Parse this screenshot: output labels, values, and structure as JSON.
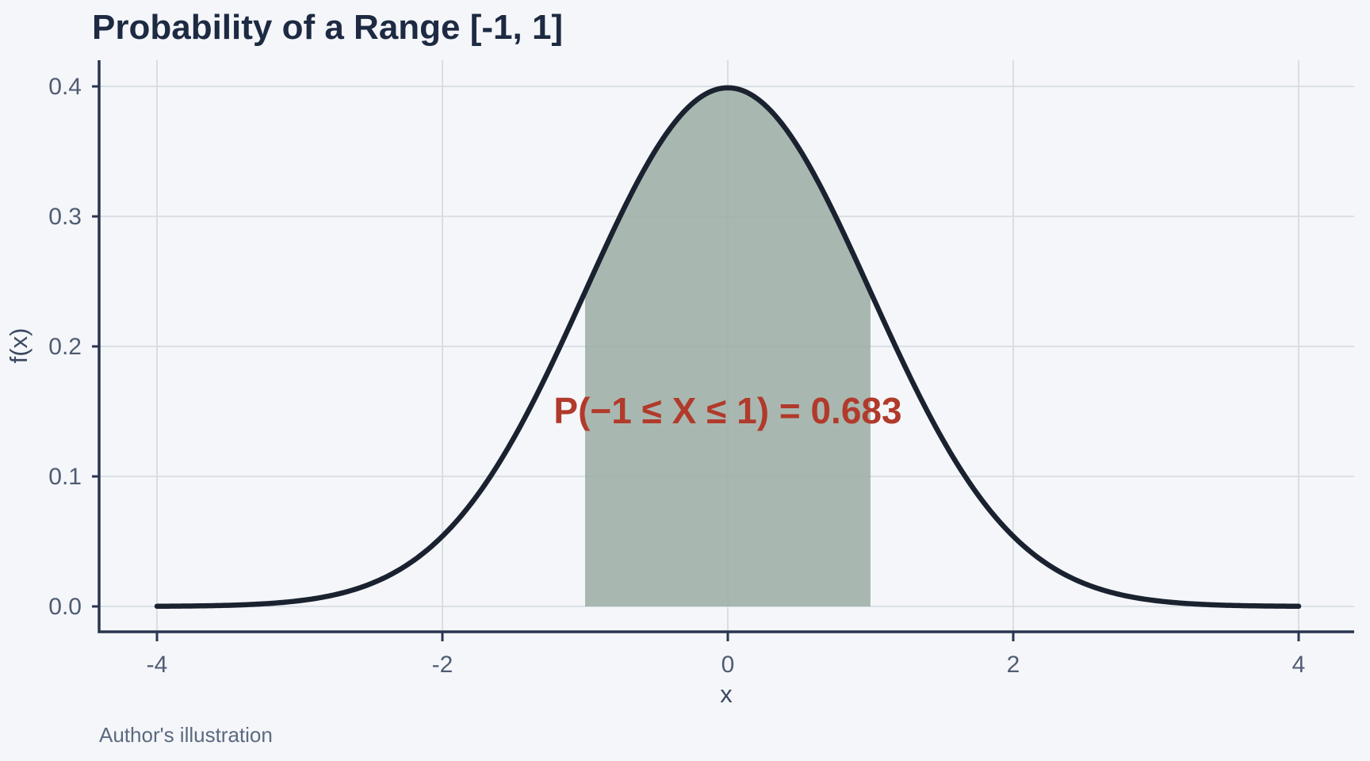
{
  "page": {
    "background": "#f4f6f9"
  },
  "header": {
    "title": "Probability of a Range [-1, 1]"
  },
  "caption": {
    "text": "Author's illustration"
  },
  "colors": {
    "background": "#f4f6f9",
    "gridline": "#d7dce2",
    "axis_line": "#2a3550",
    "curve_line": "#1a2230",
    "area_fill": "#9aada3",
    "tick_label": "#505c73",
    "axis_title": "#3c4860",
    "chart_title": "#1d2a42",
    "annotation_text": "#b13a2b",
    "caption_text": "#5c6980"
  },
  "chart_data": {
    "type": "area",
    "title": "Probability of a Range [-1, 1]",
    "xlabel": "x",
    "ylabel": "f(x)",
    "distribution": "normal",
    "mean": 0,
    "sd": 1,
    "curve_x_range": [
      -4,
      4
    ],
    "shaded_interval": [
      -1,
      1
    ],
    "shaded_probability": 0.683,
    "annotation": "P(−1 ≤ X ≤ 1) = 0.683",
    "peak_density": 0.3989,
    "x_ticks": [
      {
        "value": -4,
        "label": "-4"
      },
      {
        "value": -2,
        "label": "-2"
      },
      {
        "value": 0,
        "label": "0"
      },
      {
        "value": 2,
        "label": "2"
      },
      {
        "value": 4,
        "label": "4"
      }
    ],
    "y_ticks": [
      {
        "value": 0.0,
        "label": "0.0"
      },
      {
        "value": 0.1,
        "label": "0.1"
      },
      {
        "value": 0.2,
        "label": "0.2"
      },
      {
        "value": 0.3,
        "label": "0.3"
      },
      {
        "value": 0.4,
        "label": "0.4"
      }
    ],
    "xlim": [
      -4.4,
      4.4
    ],
    "ylim": [
      0,
      0.42
    ],
    "grid": true,
    "legend": "none",
    "sample_points": {
      "x": [
        -4,
        -3.5,
        -3,
        -2.5,
        -2,
        -1.5,
        -1,
        -0.5,
        0,
        0.5,
        1,
        1.5,
        2,
        2.5,
        3,
        3.5,
        4
      ],
      "f": [
        0.0001,
        0.0009,
        0.0044,
        0.0175,
        0.054,
        0.1295,
        0.242,
        0.3521,
        0.3989,
        0.3521,
        0.242,
        0.1295,
        0.054,
        0.0175,
        0.0044,
        0.0009,
        0.0001
      ]
    }
  }
}
